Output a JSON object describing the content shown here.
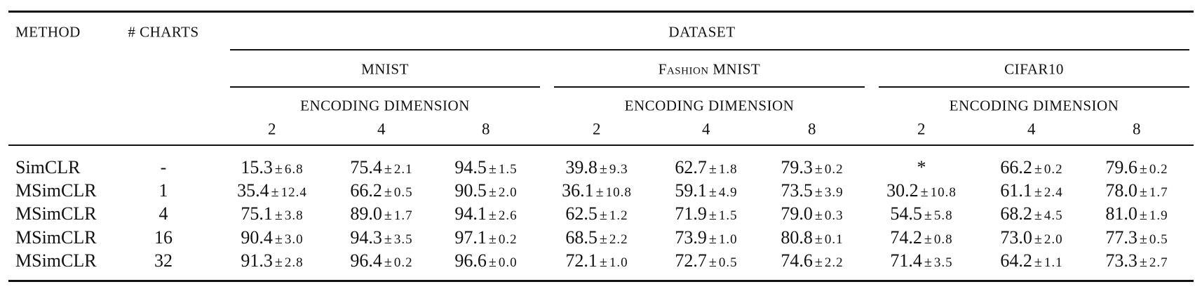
{
  "header": {
    "method": "METHOD",
    "charts": "# CHARTS",
    "dataset": "DATASET",
    "datasets": [
      {
        "name": "MNIST",
        "subheader": "ENCODING DIMENSION",
        "dims": [
          "2",
          "4",
          "8"
        ]
      },
      {
        "name": "Fashion MNIST",
        "subheader": "ENCODING DIMENSION",
        "dims": [
          "2",
          "4",
          "8"
        ]
      },
      {
        "name": "CIFAR10",
        "subheader": "ENCODING DIMENSION",
        "dims": [
          "2",
          "4",
          "8"
        ]
      }
    ]
  },
  "plus_minus": "±",
  "rows": [
    {
      "method": "SimCLR",
      "charts": "-",
      "cells": [
        {
          "mean": "15.3",
          "std": "6.8"
        },
        {
          "mean": "75.4",
          "std": "2.1"
        },
        {
          "mean": "94.5",
          "std": "1.5"
        },
        {
          "mean": "39.8",
          "std": "9.3"
        },
        {
          "mean": "62.7",
          "std": "1.8"
        },
        {
          "mean": "79.3",
          "std": "0.2"
        },
        {
          "mean": "*"
        },
        {
          "mean": "66.2",
          "std": "0.2"
        },
        {
          "mean": "79.6",
          "std": "0.2"
        }
      ]
    },
    {
      "method": "MSimCLR",
      "charts": "1",
      "cells": [
        {
          "mean": "35.4",
          "std": "12.4"
        },
        {
          "mean": "66.2",
          "std": "0.5"
        },
        {
          "mean": "90.5",
          "std": "2.0"
        },
        {
          "mean": "36.1",
          "std": "10.8"
        },
        {
          "mean": "59.1",
          "std": "4.9"
        },
        {
          "mean": "73.5",
          "std": "3.9"
        },
        {
          "mean": "30.2",
          "std": "10.8"
        },
        {
          "mean": "61.1",
          "std": "2.4"
        },
        {
          "mean": "78.0",
          "std": "1.7"
        }
      ]
    },
    {
      "method": "MSimCLR",
      "charts": "4",
      "cells": [
        {
          "mean": "75.1",
          "std": "3.8"
        },
        {
          "mean": "89.0",
          "std": "1.7"
        },
        {
          "mean": "94.1",
          "std": "2.6"
        },
        {
          "mean": "62.5",
          "std": "1.2"
        },
        {
          "mean": "71.9",
          "std": "1.5"
        },
        {
          "mean": "79.0",
          "std": "0.3"
        },
        {
          "mean": "54.5",
          "std": "5.8"
        },
        {
          "mean": "68.2",
          "std": "4.5"
        },
        {
          "mean": "81.0",
          "std": "1.9"
        }
      ]
    },
    {
      "method": "MSimCLR",
      "charts": "16",
      "cells": [
        {
          "mean": "90.4",
          "std": "3.0"
        },
        {
          "mean": "94.3",
          "std": "3.5"
        },
        {
          "mean": "97.1",
          "std": "0.2"
        },
        {
          "mean": "68.5",
          "std": "2.2"
        },
        {
          "mean": "73.9",
          "std": "1.0"
        },
        {
          "mean": "80.8",
          "std": "0.1"
        },
        {
          "mean": "74.2",
          "std": "0.8"
        },
        {
          "mean": "73.0",
          "std": "2.0"
        },
        {
          "mean": "77.3",
          "std": "0.5"
        }
      ]
    },
    {
      "method": "MSimCLR",
      "charts": "32",
      "cells": [
        {
          "mean": "91.3",
          "std": "2.8"
        },
        {
          "mean": "96.4",
          "std": "0.2"
        },
        {
          "mean": "96.6",
          "std": "0.0"
        },
        {
          "mean": "72.1",
          "std": "1.0"
        },
        {
          "mean": "72.7",
          "std": "0.5"
        },
        {
          "mean": "74.6",
          "std": "2.2"
        },
        {
          "mean": "71.4",
          "std": "3.5"
        },
        {
          "mean": "64.2",
          "std": "1.1"
        },
        {
          "mean": "73.3",
          "std": "2.7"
        }
      ]
    }
  ]
}
